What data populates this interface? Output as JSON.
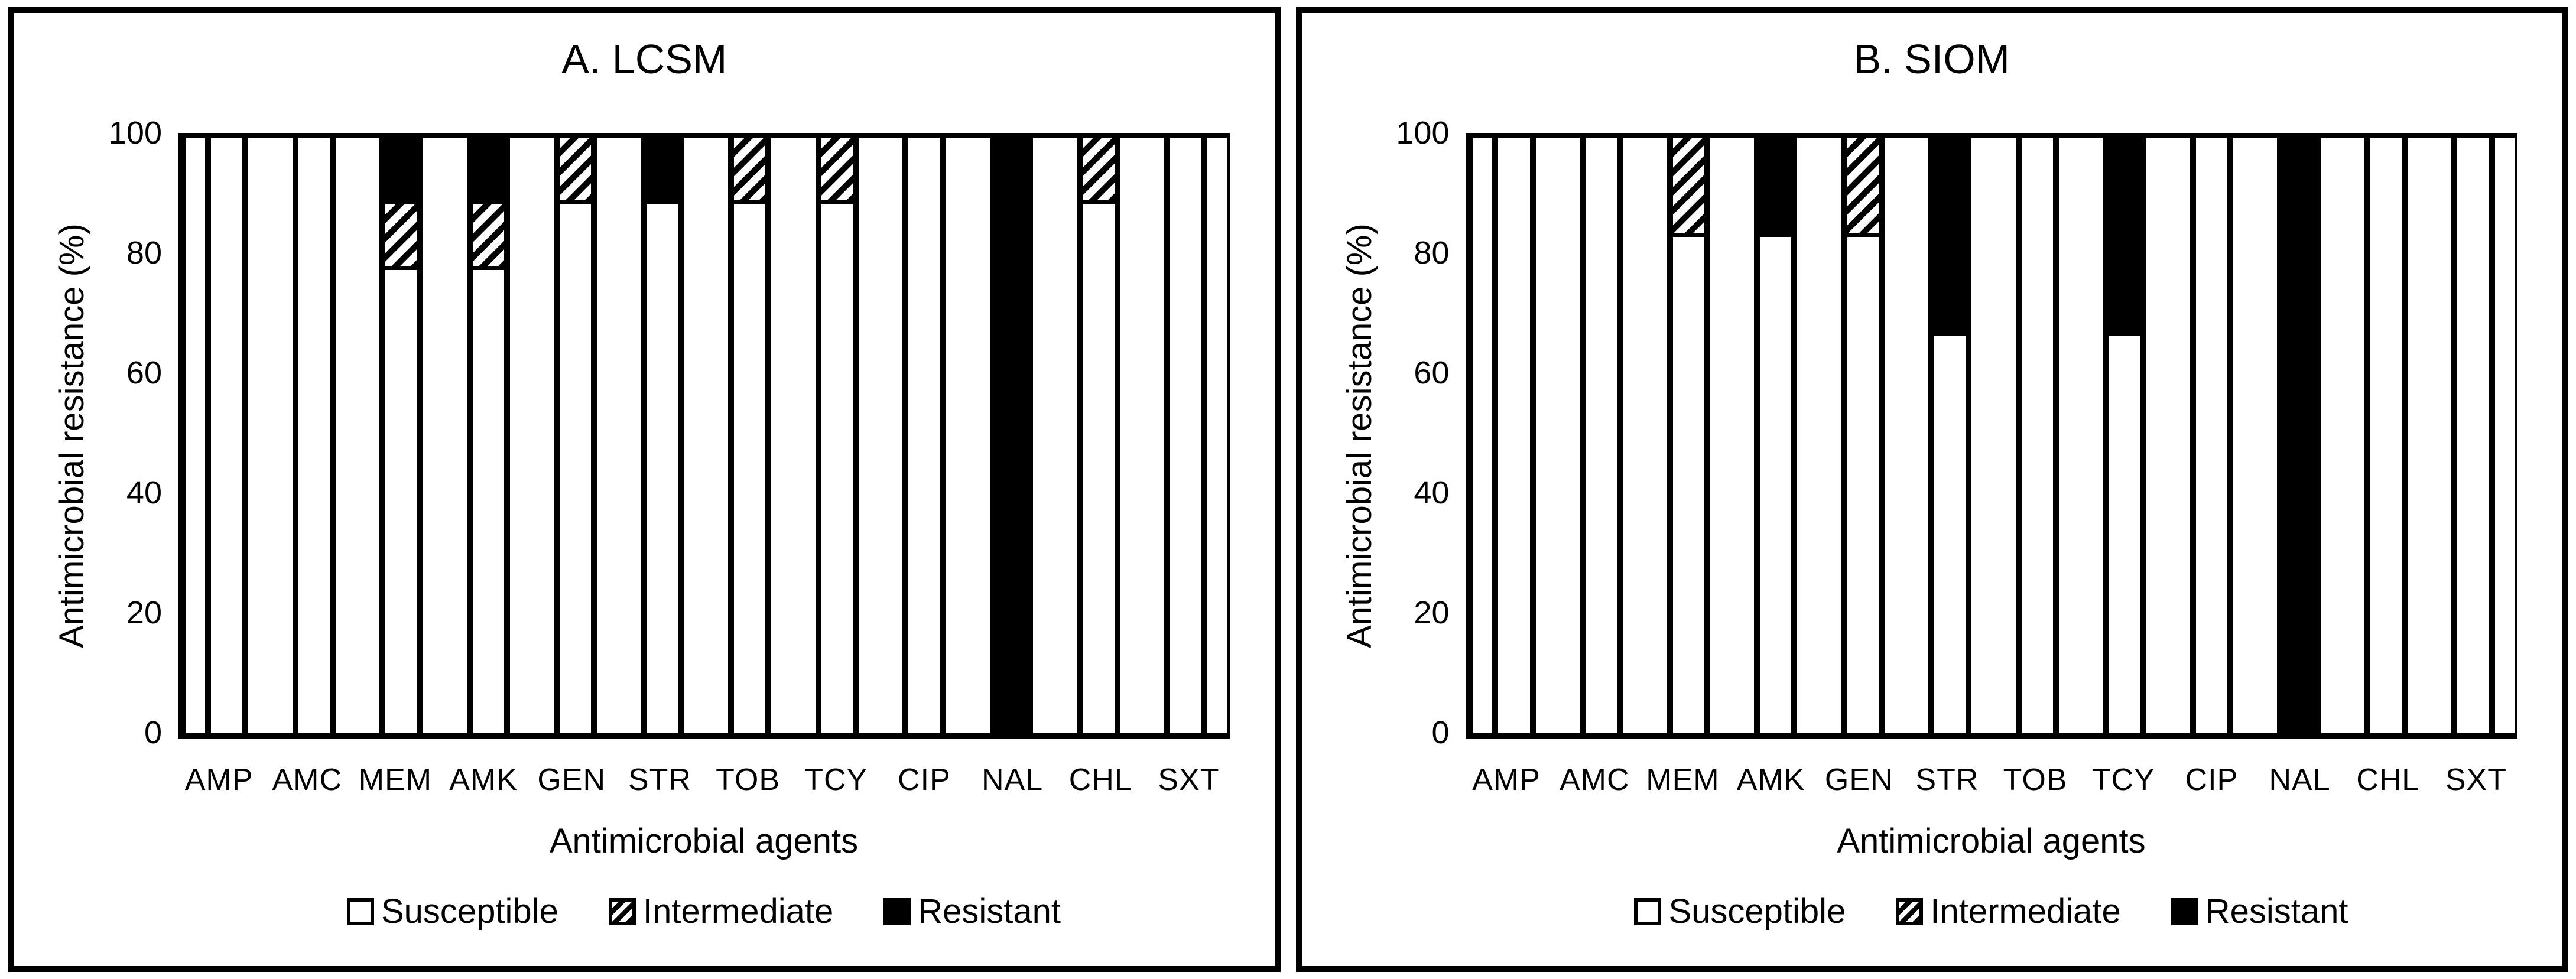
{
  "figure": {
    "background": "#ffffff",
    "ink_color": "#000000",
    "panel_border_color": "#000000",
    "bar_fill": "#ffffff",
    "resistant_fill": "#000000",
    "intermediate_pattern": "diagonal-hatch"
  },
  "legend": {
    "items": [
      {
        "label": "Susceptible",
        "pattern": "outline"
      },
      {
        "label": "Intermediate",
        "pattern": "hatch"
      },
      {
        "label": "Resistant",
        "pattern": "solid"
      }
    ]
  },
  "chart_data": [
    {
      "type": "bar",
      "stacked": true,
      "percent": true,
      "title": "A. LCSM",
      "xlabel": "Antimicrobial agents",
      "ylabel": "Antimicrobial resistance (%)",
      "ylim": [
        0,
        100
      ],
      "yticks": [
        100,
        80,
        60,
        40,
        20,
        0
      ],
      "categories": [
        "AMP",
        "AMC",
        "MEM",
        "AMK",
        "GEN",
        "STR",
        "TOB",
        "TCY",
        "CIP",
        "NAL",
        "CHL",
        "SXT"
      ],
      "series": [
        {
          "name": "Susceptible",
          "values": [
            100,
            100,
            77.8,
            77.8,
            88.9,
            88.9,
            88.9,
            88.9,
            100,
            0,
            88.9,
            100
          ]
        },
        {
          "name": "Intermediate",
          "values": [
            0,
            0,
            11.1,
            11.1,
            11.1,
            0,
            11.1,
            11.1,
            0,
            0,
            11.1,
            0
          ]
        },
        {
          "name": "Resistant",
          "values": [
            0,
            0,
            11.1,
            11.1,
            0,
            11.1,
            0,
            0,
            0,
            100,
            0,
            0
          ]
        }
      ],
      "layout": {
        "separator_bars": true,
        "grid": false,
        "legend_position": "bottom"
      }
    },
    {
      "type": "bar",
      "stacked": true,
      "percent": true,
      "title": "B. SIOM",
      "xlabel": "Antimicrobial agents",
      "ylabel": "Antimicrobial resistance (%)",
      "ylim": [
        0,
        100
      ],
      "yticks": [
        100,
        80,
        60,
        40,
        20,
        0
      ],
      "categories": [
        "AMP",
        "AMC",
        "MEM",
        "AMK",
        "GEN",
        "STR",
        "TOB",
        "TCY",
        "CIP",
        "NAL",
        "CHL",
        "SXT"
      ],
      "series": [
        {
          "name": "Susceptible",
          "values": [
            100,
            100,
            83.3,
            83.3,
            83.3,
            66.7,
            100,
            66.7,
            100,
            0,
            100,
            100
          ]
        },
        {
          "name": "Intermediate",
          "values": [
            0,
            0,
            16.7,
            0,
            16.7,
            0,
            0,
            0,
            0,
            0,
            0,
            0
          ]
        },
        {
          "name": "Resistant",
          "values": [
            0,
            0,
            0,
            16.7,
            0,
            33.3,
            0,
            33.3,
            0,
            100,
            0,
            0
          ]
        }
      ],
      "layout": {
        "separator_bars": true,
        "grid": false,
        "legend_position": "bottom"
      }
    }
  ]
}
